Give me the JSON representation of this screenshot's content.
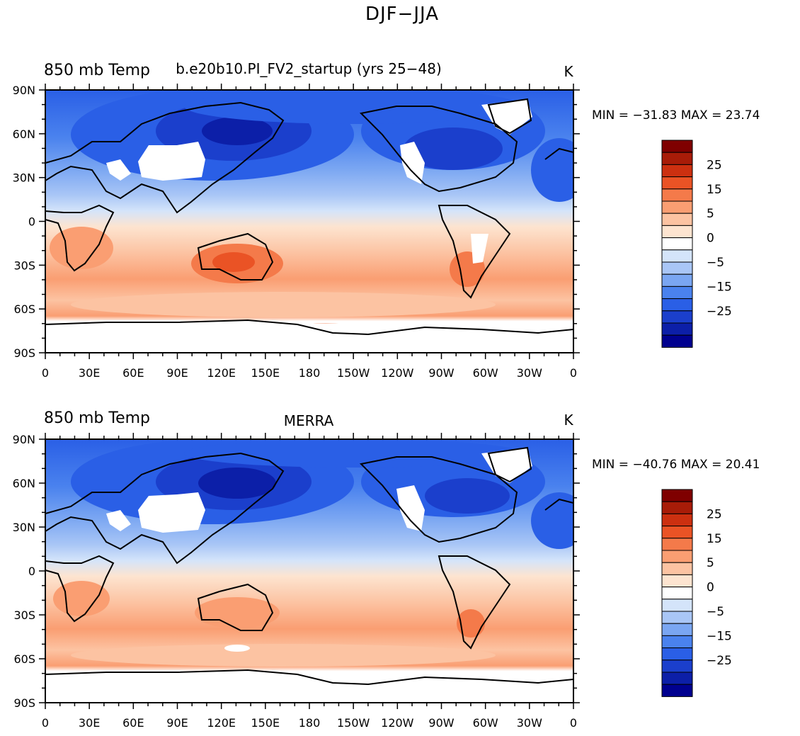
{
  "figure": {
    "title": "DJF−JJA"
  },
  "colors": {
    "levels": [
      "#00008f",
      "#0c1fa8",
      "#1b3fcc",
      "#2a5fe6",
      "#4a82ee",
      "#7aa6f2",
      "#a9c6f6",
      "#d4e4fa",
      "#ffffff",
      "#fde4d0",
      "#fcc3a2",
      "#fa9e72",
      "#f47a4a",
      "#ea5325",
      "#cc3010",
      "#a81c08",
      "#7f0000"
    ],
    "land_missing": "#ffffff",
    "coast": "#000000"
  },
  "panels": [
    {
      "left_title": "850 mb Temp",
      "center_title": "b.e20b10.PI_FV2_startup (yrs 25−48)",
      "unit": "K",
      "stats": "MIN = −31.83 MAX =  23.74",
      "min": -31.83,
      "max": 23.74
    },
    {
      "left_title": "850 mb Temp",
      "center_title": "MERRA",
      "unit": "K",
      "stats": "MIN = −40.76 MAX =  20.41",
      "min": -40.76,
      "max": 20.41
    }
  ],
  "lat_labels": [
    "90N",
    "60N",
    "30N",
    "0",
    "30S",
    "60S",
    "90S"
  ],
  "lon_labels": [
    "0",
    "30E",
    "60E",
    "90E",
    "120E",
    "150E",
    "180",
    "150W",
    "120W",
    "90W",
    "60W",
    "30W",
    "0"
  ],
  "colorbar_labels": [
    "25",
    "15",
    "5",
    "0",
    "−5",
    "−15",
    "−25"
  ]
}
